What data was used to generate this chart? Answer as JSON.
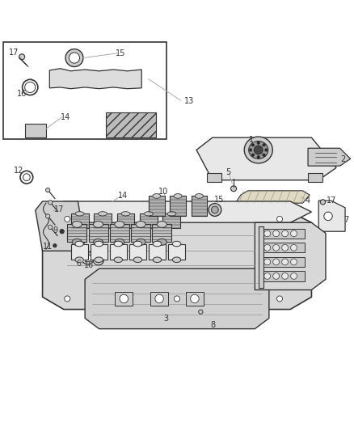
{
  "bg_color": "#ffffff",
  "line_color": "#333333",
  "light_gray": "#aaaaaa",
  "mid_gray": "#888888",
  "dark_gray": "#555555",
  "fill_light": "#e8e8e8",
  "fill_mid": "#cccccc",
  "fill_dark": "#999999",
  "figsize": [
    4.38,
    5.33
  ],
  "dpi": 100
}
